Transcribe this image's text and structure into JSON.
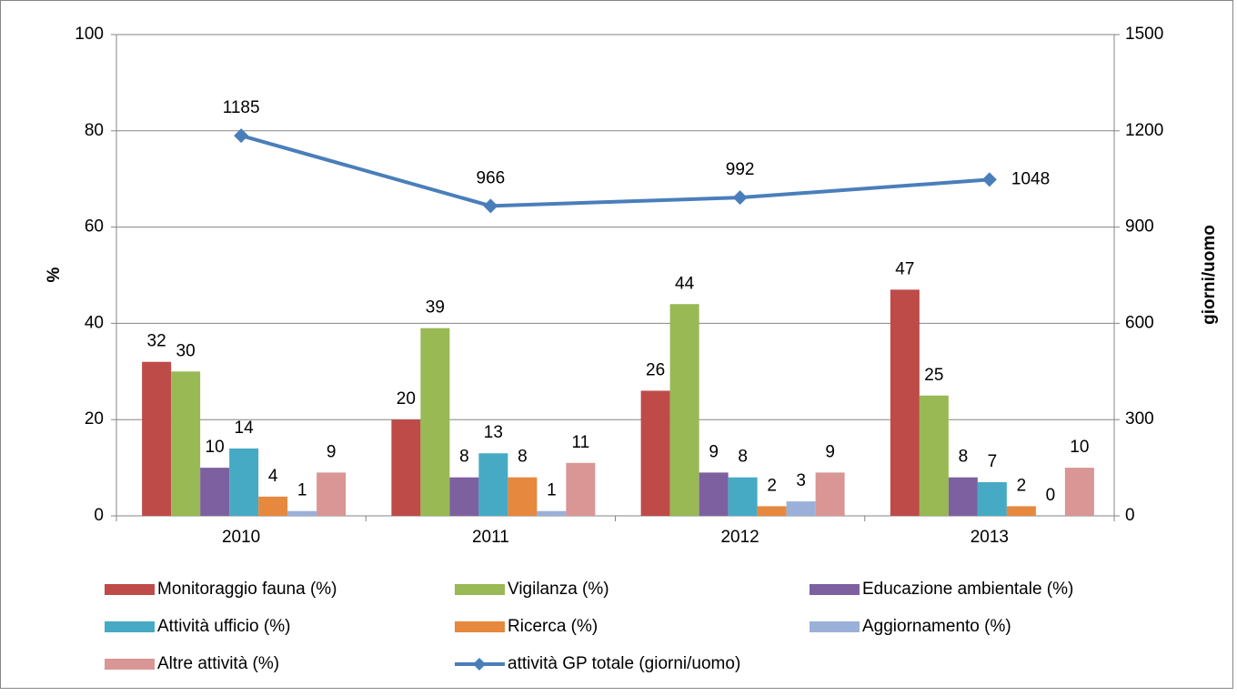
{
  "chart_data": {
    "type": "bar",
    "categories": [
      "2010",
      "2011",
      "2012",
      "2013"
    ],
    "series": [
      {
        "name": "Monitoraggio fauna (%)",
        "color": "#be4b48",
        "values": [
          32,
          20,
          26,
          47
        ]
      },
      {
        "name": "Vigilanza (%)",
        "color": "#98b954",
        "values": [
          30,
          39,
          44,
          25
        ]
      },
      {
        "name": "Educazione ambientale (%)",
        "color": "#7d60a0",
        "values": [
          10,
          8,
          9,
          8
        ]
      },
      {
        "name": "Attività ufficio (%)",
        "color": "#46aac5",
        "values": [
          14,
          13,
          8,
          7
        ]
      },
      {
        "name": "Ricerca (%)",
        "color": "#e6883e",
        "values": [
          4,
          8,
          2,
          2
        ]
      },
      {
        "name": "Aggiornamento (%)",
        "color": "#9bb0d8",
        "values": [
          1,
          1,
          3,
          0
        ]
      },
      {
        "name": "Altre attività (%)",
        "color": "#d99694",
        "values": [
          9,
          11,
          9,
          10
        ]
      },
      {
        "name": "attività GP totale (giorni/uomo)",
        "type": "line",
        "axis": "y2",
        "color": "#4a7ebb",
        "values": [
          1185,
          966,
          992,
          1048
        ]
      }
    ],
    "ylabel": "%",
    "y2label": "giorni/uomo",
    "ylim": [
      0,
      100
    ],
    "yticks": [
      0,
      20,
      40,
      60,
      80,
      100
    ],
    "y2lim": [
      0,
      1500
    ],
    "y2ticks": [
      0,
      300,
      600,
      900,
      1200,
      1500
    ],
    "grid": true
  }
}
